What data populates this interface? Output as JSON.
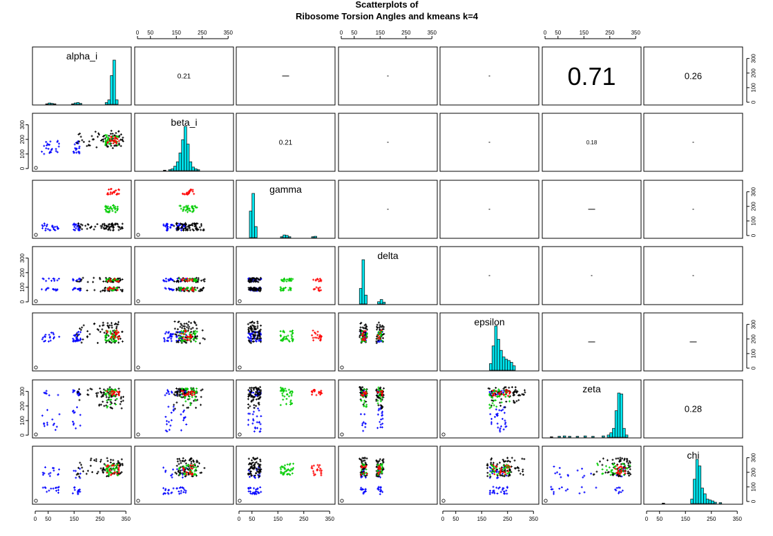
{
  "figure": {
    "title_line1": "Scatterplots of",
    "title_line2": "Ribosome Torsion Angles and kmeans k=4"
  },
  "chart_data": {
    "type": "scatter",
    "variables": [
      "alpha_i",
      "beta_i",
      "gamma",
      "delta",
      "epsilon",
      "zeta",
      "chi"
    ],
    "cluster_colors": [
      "#0000ff",
      "#000000",
      "#00cc00",
      "#ff0000"
    ],
    "histogram_color": "#00e5ee",
    "axis_range": [
      0,
      360
    ],
    "tick_labels": [
      "0",
      "50",
      "150",
      "250",
      "350"
    ],
    "y_tick_labels": [
      "0",
      "100",
      "200",
      "300"
    ],
    "corr_min_value": "0",
    "correlations": [
      {
        "row": 0,
        "col": 1,
        "label": "0.21",
        "size": 10
      },
      {
        "row": 0,
        "col": 2,
        "label": "",
        "size": 2
      },
      {
        "row": 0,
        "col": 3,
        "label": "",
        "size": 1
      },
      {
        "row": 0,
        "col": 4,
        "label": "",
        "size": 1
      },
      {
        "row": 0,
        "col": 5,
        "label": "0.71",
        "size": 36
      },
      {
        "row": 0,
        "col": 6,
        "label": "0.26",
        "size": 13
      },
      {
        "row": 1,
        "col": 2,
        "label": "0.21",
        "size": 10
      },
      {
        "row": 1,
        "col": 3,
        "label": "",
        "size": 1
      },
      {
        "row": 1,
        "col": 4,
        "label": "",
        "size": 1
      },
      {
        "row": 1,
        "col": 5,
        "label": "0.18",
        "size": 8
      },
      {
        "row": 1,
        "col": 6,
        "label": "",
        "size": 1
      },
      {
        "row": 2,
        "col": 3,
        "label": "",
        "size": 1
      },
      {
        "row": 2,
        "col": 4,
        "label": "",
        "size": 1
      },
      {
        "row": 2,
        "col": 5,
        "label": "",
        "size": 2
      },
      {
        "row": 2,
        "col": 6,
        "label": "",
        "size": 1
      },
      {
        "row": 3,
        "col": 4,
        "label": "",
        "size": 1
      },
      {
        "row": 3,
        "col": 5,
        "label": "",
        "size": 1
      },
      {
        "row": 3,
        "col": 6,
        "label": "",
        "size": 1
      },
      {
        "row": 4,
        "col": 5,
        "label": "",
        "size": 2
      },
      {
        "row": 4,
        "col": 6,
        "label": "",
        "size": 2
      },
      {
        "row": 5,
        "col": 6,
        "label": "0.28",
        "size": 13
      }
    ],
    "histograms": {
      "alpha_i": [
        {
          "x": 45,
          "v": 1
        },
        {
          "x": 55,
          "v": 3
        },
        {
          "x": 65,
          "v": 2
        },
        {
          "x": 75,
          "v": 1
        },
        {
          "x": 145,
          "v": 1
        },
        {
          "x": 155,
          "v": 3
        },
        {
          "x": 165,
          "v": 4
        },
        {
          "x": 175,
          "v": 2
        },
        {
          "x": 275,
          "v": 4
        },
        {
          "x": 285,
          "v": 10
        },
        {
          "x": 295,
          "v": 65
        },
        {
          "x": 305,
          "v": 100
        },
        {
          "x": 315,
          "v": 10
        }
      ],
      "beta_i": [
        {
          "x": 105,
          "v": 1
        },
        {
          "x": 125,
          "v": 2
        },
        {
          "x": 135,
          "v": 4
        },
        {
          "x": 145,
          "v": 10
        },
        {
          "x": 155,
          "v": 20
        },
        {
          "x": 165,
          "v": 40
        },
        {
          "x": 175,
          "v": 70
        },
        {
          "x": 185,
          "v": 100
        },
        {
          "x": 195,
          "v": 60
        },
        {
          "x": 205,
          "v": 20
        },
        {
          "x": 215,
          "v": 8
        },
        {
          "x": 225,
          "v": 4
        },
        {
          "x": 235,
          "v": 2
        }
      ],
      "gamma": [
        {
          "x": 45,
          "v": 60
        },
        {
          "x": 55,
          "v": 100
        },
        {
          "x": 65,
          "v": 25
        },
        {
          "x": 165,
          "v": 2
        },
        {
          "x": 175,
          "v": 6
        },
        {
          "x": 185,
          "v": 5
        },
        {
          "x": 195,
          "v": 2
        },
        {
          "x": 285,
          "v": 2
        },
        {
          "x": 295,
          "v": 3
        }
      ],
      "delta": [
        {
          "x": 75,
          "v": 35
        },
        {
          "x": 85,
          "v": 100
        },
        {
          "x": 95,
          "v": 20
        },
        {
          "x": 145,
          "v": 5
        },
        {
          "x": 155,
          "v": 10
        },
        {
          "x": 165,
          "v": 4
        }
      ],
      "epsilon": [
        {
          "x": 185,
          "v": 15
        },
        {
          "x": 195,
          "v": 55
        },
        {
          "x": 205,
          "v": 100
        },
        {
          "x": 215,
          "v": 70
        },
        {
          "x": 225,
          "v": 45
        },
        {
          "x": 235,
          "v": 30
        },
        {
          "x": 245,
          "v": 25
        },
        {
          "x": 255,
          "v": 22
        },
        {
          "x": 265,
          "v": 18
        },
        {
          "x": 275,
          "v": 10
        }
      ],
      "zeta": [
        {
          "x": 25,
          "v": 1
        },
        {
          "x": 55,
          "v": 2
        },
        {
          "x": 75,
          "v": 3
        },
        {
          "x": 95,
          "v": 2
        },
        {
          "x": 125,
          "v": 2
        },
        {
          "x": 155,
          "v": 3
        },
        {
          "x": 185,
          "v": 2
        },
        {
          "x": 225,
          "v": 3
        },
        {
          "x": 245,
          "v": 5
        },
        {
          "x": 255,
          "v": 10
        },
        {
          "x": 265,
          "v": 20
        },
        {
          "x": 275,
          "v": 60
        },
        {
          "x": 285,
          "v": 100
        },
        {
          "x": 295,
          "v": 98
        },
        {
          "x": 305,
          "v": 20
        },
        {
          "x": 315,
          "v": 5
        }
      ],
      "chi": [
        {
          "x": 65,
          "v": 1
        },
        {
          "x": 175,
          "v": 10
        },
        {
          "x": 185,
          "v": 55
        },
        {
          "x": 195,
          "v": 100
        },
        {
          "x": 205,
          "v": 85
        },
        {
          "x": 215,
          "v": 35
        },
        {
          "x": 225,
          "v": 22
        },
        {
          "x": 235,
          "v": 10
        },
        {
          "x": 245,
          "v": 8
        },
        {
          "x": 255,
          "v": 6
        },
        {
          "x": 265,
          "v": 3
        },
        {
          "x": 285,
          "v": 2
        }
      ]
    },
    "clusters": {
      "blue": {
        "alpha_i": [
          [
            25,
            95
          ],
          [
            145,
            175
          ]
        ],
        "beta_i": [
          [
            150,
            190
          ],
          [
            100,
            140
          ]
        ],
        "gamma": [
          [
            35,
            85
          ],
          [
            35,
            85
          ]
        ],
        "delta": [
          [
            75,
            95
          ],
          [
            140,
            160
          ]
        ],
        "epsilon": [
          [
            180,
            250
          ],
          [
            180,
            250
          ]
        ],
        "zeta": [
          [
            20,
            200
          ],
          [
            270,
            310
          ]
        ],
        "chi": [
          [
            160,
            240
          ],
          [
            50,
            100
          ]
        ]
      },
      "black": {
        "alpha_i": [
          [
            160,
            340
          ],
          [
            260,
            340
          ]
        ],
        "beta_i": [
          [
            140,
            260
          ],
          [
            150,
            230
          ]
        ],
        "gamma": [
          [
            35,
            85
          ],
          [
            35,
            85
          ]
        ],
        "delta": [
          [
            70,
            100
          ],
          [
            135,
            165
          ]
        ],
        "epsilon": [
          [
            170,
            320
          ],
          [
            170,
            320
          ]
        ],
        "zeta": [
          [
            260,
            330
          ],
          [
            180,
            320
          ]
        ],
        "chi": [
          [
            170,
            300
          ],
          [
            170,
            300
          ]
        ]
      },
      "green": {
        "alpha_i": [
          [
            270,
            320
          ],
          [
            270,
            320
          ]
        ],
        "beta_i": [
          [
            160,
            230
          ],
          [
            160,
            230
          ]
        ],
        "gamma": [
          [
            160,
            210
          ],
          [
            160,
            210
          ]
        ],
        "delta": [
          [
            75,
            100
          ],
          [
            140,
            160
          ]
        ],
        "epsilon": [
          [
            180,
            260
          ],
          [
            180,
            260
          ]
        ],
        "zeta": [
          [
            260,
            320
          ],
          [
            180,
            330
          ]
        ],
        "chi": [
          [
            180,
            260
          ],
          [
            180,
            260
          ]
        ]
      },
      "red": {
        "alpha_i": [
          [
            275,
            325
          ],
          [
            275,
            325
          ]
        ],
        "beta_i": [
          [
            170,
            220
          ],
          [
            170,
            220
          ]
        ],
        "gamma": [
          [
            280,
            320
          ],
          [
            280,
            320
          ]
        ],
        "delta": [
          [
            75,
            100
          ],
          [
            140,
            160
          ]
        ],
        "epsilon": [
          [
            190,
            260
          ],
          [
            190,
            260
          ]
        ],
        "zeta": [
          [
            270,
            310
          ],
          [
            270,
            310
          ]
        ],
        "chi": [
          [
            180,
            250
          ],
          [
            180,
            250
          ]
        ]
      }
    }
  }
}
